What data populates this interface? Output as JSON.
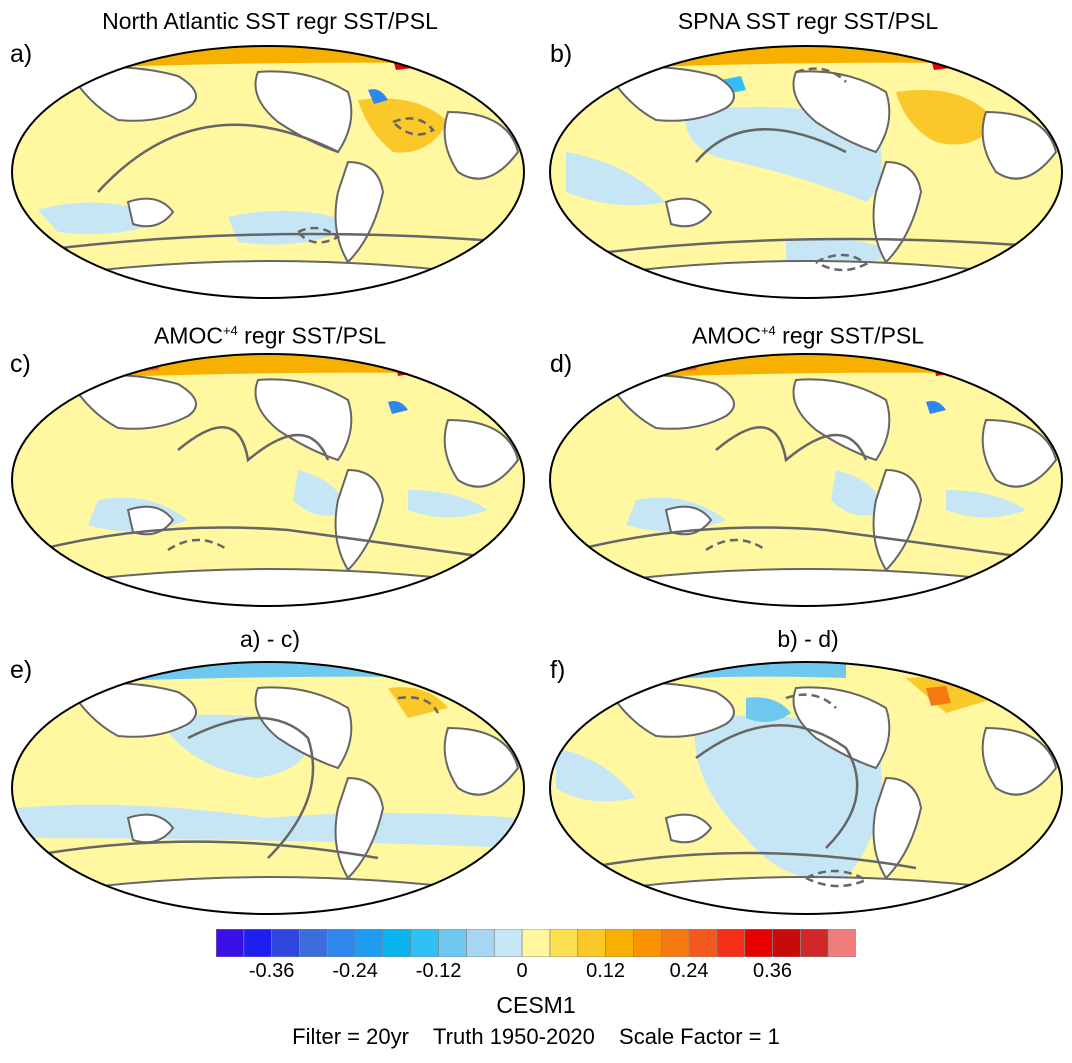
{
  "panels": [
    {
      "tag": "a)",
      "title": "North Atlantic SST regr SST/PSL"
    },
    {
      "tag": "b)",
      "title": "SPNA SST regr SST/PSL"
    },
    {
      "tag": "c)",
      "title_main": "AMOC",
      "title_sup": "+4",
      "title_rest": " regr SST/PSL"
    },
    {
      "tag": "d)",
      "title_main": "AMOC",
      "title_sup": "+4",
      "title_rest": " regr SST/PSL"
    },
    {
      "tag": "e)",
      "title": "a) - c)"
    },
    {
      "tag": "f)",
      "title": "b) - d)"
    }
  ],
  "colorbar": {
    "colors": [
      "#3a10e6",
      "#1e1ef0",
      "#2e46dc",
      "#3d6cdc",
      "#2f86ec",
      "#1f9cf0",
      "#0ab4f0",
      "#30c0f6",
      "#6ec8f0",
      "#a6d6f2",
      "#c6e6f6",
      "#fff8a0",
      "#fde050",
      "#fac828",
      "#f8b000",
      "#f99400",
      "#f57a10",
      "#f45a1e",
      "#f43018",
      "#e80000",
      "#c80a0a",
      "#d02828",
      "#f07c7c"
    ],
    "ticks": [
      "-0.36",
      "-0.24",
      "-0.12",
      "0",
      "0.12",
      "0.24",
      "0.36"
    ]
  },
  "footer": {
    "model": "CESM1",
    "filter": "Filter = 20yr",
    "truth": "Truth 1950-2020",
    "scale": "Scale Factor = 1"
  }
}
